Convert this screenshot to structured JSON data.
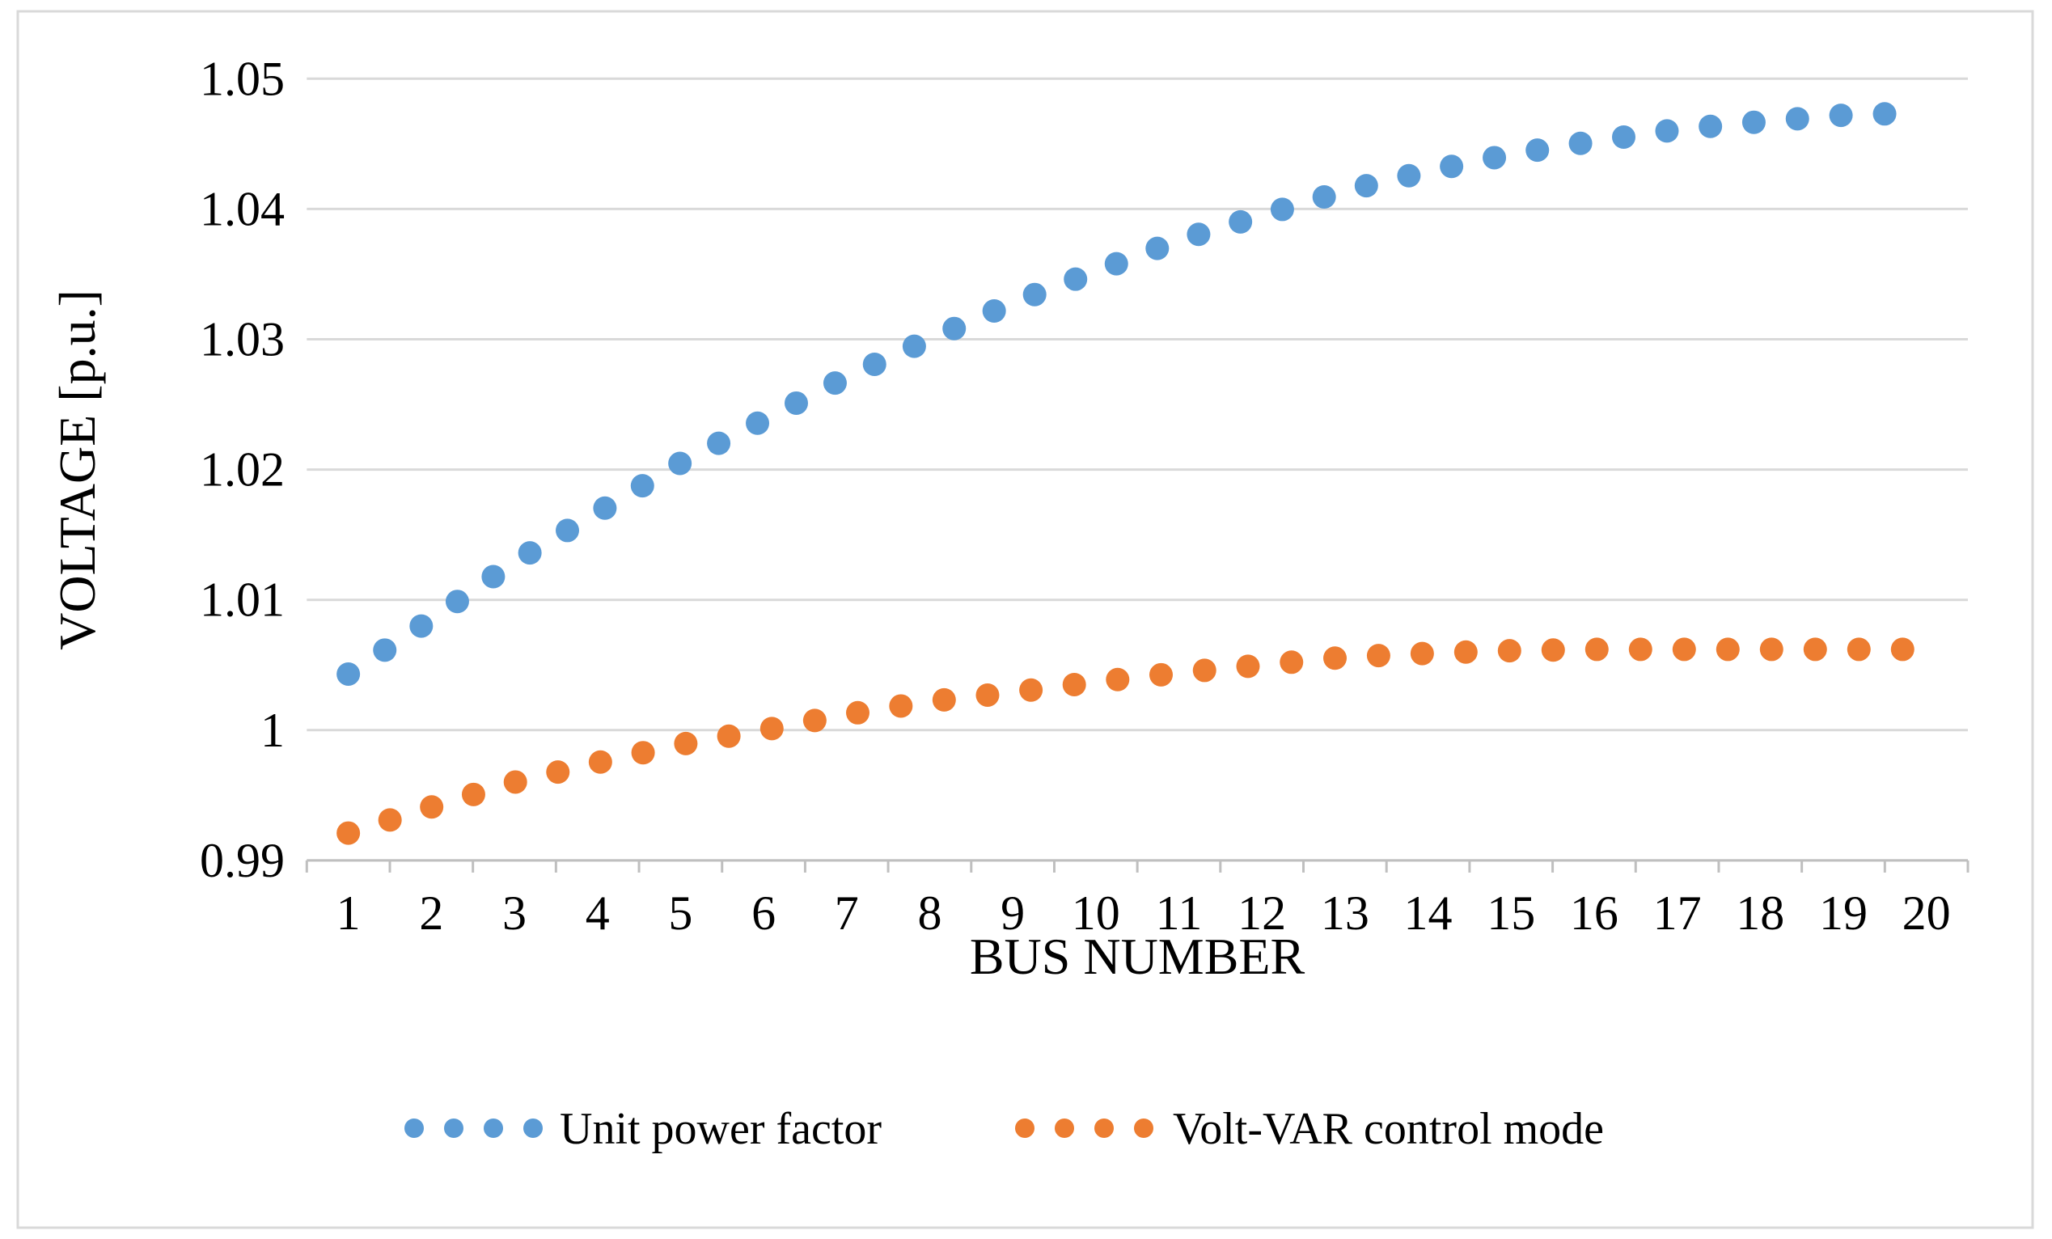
{
  "figure": {
    "background": "#ffffff",
    "border_color": "#d9d9d9"
  },
  "chart_data": {
    "type": "line",
    "line_style": "round-dot-dashed",
    "title": "",
    "xlabel": "BUS NUMBER",
    "ylabel": "VOLTAGE [p.u.]",
    "grid": true,
    "legend_position": "bottom",
    "xlim_categories": 20,
    "ylim": [
      0.99,
      1.05
    ],
    "yticks": [
      0.99,
      1.0,
      1.01,
      1.02,
      1.03,
      1.04,
      1.05
    ],
    "ytick_labels": [
      "0.99",
      "1",
      "1.01",
      "1.02",
      "1.03",
      "1.04",
      "1.05"
    ],
    "x": [
      1,
      2,
      3,
      4,
      5,
      6,
      7,
      8,
      9,
      10,
      11,
      12,
      13,
      14,
      15,
      16,
      17,
      18,
      19,
      20
    ],
    "xtick_labels": [
      "1",
      "2",
      "3",
      "4",
      "5",
      "6",
      "7",
      "8",
      "9",
      "10",
      "11",
      "12",
      "13",
      "14",
      "15",
      "16",
      "17",
      "18",
      "19",
      "20"
    ],
    "series": [
      {
        "name": "Unit power factor",
        "color": "#5B9BD5",
        "values": [
          1.0043,
          1.0085,
          1.0129,
          1.0167,
          1.0205,
          1.0238,
          1.0271,
          1.03,
          1.0328,
          1.0352,
          1.0376,
          1.0395,
          1.0414,
          1.0429,
          1.0442,
          1.0452,
          1.0461,
          1.0467,
          1.0472,
          1.0474
        ]
      },
      {
        "name": "Volt-VAR control mode",
        "color": "#ED7D31",
        "values": [
          0.9921,
          0.9941,
          0.996,
          0.9975,
          0.9989,
          1.0,
          1.0012,
          1.0022,
          1.0029,
          1.0037,
          1.0044,
          1.005,
          1.0056,
          1.0059,
          1.0061,
          1.0062,
          1.0062,
          1.0062,
          1.0062,
          1.0062
        ]
      }
    ],
    "gridline_color": "#d9d9d9",
    "axis_color": "#bfbfbf"
  }
}
